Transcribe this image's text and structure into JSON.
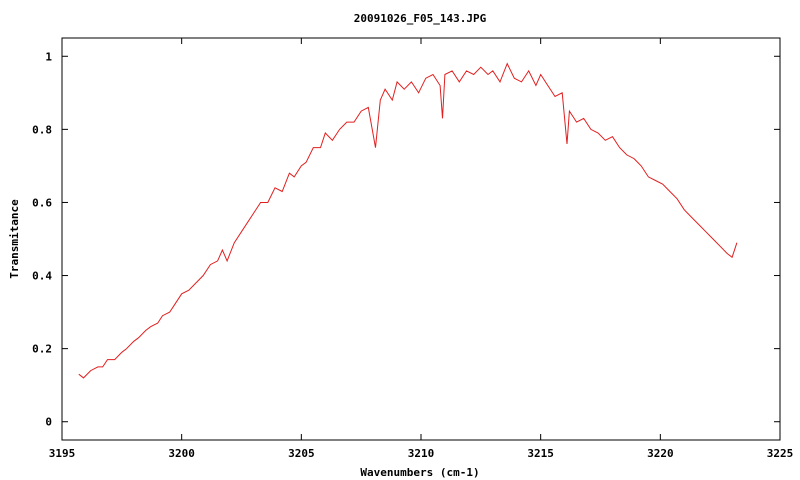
{
  "chart_data": {
    "type": "line",
    "title": "20091026_F05_143.JPG",
    "xlabel": "Wavenumbers (cm-1)",
    "ylabel": "Transmitance",
    "xlim": [
      3195,
      3225
    ],
    "ylim": [
      -0.05,
      1.05
    ],
    "xticks": [
      3195,
      3200,
      3205,
      3210,
      3215,
      3220,
      3225
    ],
    "yticks": [
      0,
      0.2,
      0.4,
      0.6,
      0.8,
      1
    ],
    "ytick_labels": [
      "0",
      "0.2",
      "0.4",
      "0.6",
      "0.8",
      "1"
    ],
    "grid": false,
    "line_color": "#e02020",
    "series": [
      {
        "x": [
          3195.7,
          3195.9,
          3196.2,
          3196.5,
          3196.7,
          3196.9,
          3197.2,
          3197.5,
          3197.7,
          3198.0,
          3198.2,
          3198.5,
          3198.7,
          3199.0,
          3199.2,
          3199.5,
          3199.7,
          3200.0,
          3200.3,
          3200.6,
          3200.9,
          3201.2,
          3201.5,
          3201.7,
          3201.9,
          3202.2,
          3202.5,
          3202.8,
          3203.0,
          3203.3,
          3203.6,
          3203.9,
          3204.2,
          3204.5,
          3204.7,
          3205.0,
          3205.2,
          3205.5,
          3205.8,
          3206.0,
          3206.3,
          3206.6,
          3206.9,
          3207.2,
          3207.5,
          3207.8,
          3208.1,
          3208.3,
          3208.5,
          3208.8,
          3209.0,
          3209.3,
          3209.6,
          3209.9,
          3210.2,
          3210.5,
          3210.8,
          3210.9,
          3211.0,
          3211.3,
          3211.6,
          3211.9,
          3212.2,
          3212.5,
          3212.8,
          3213.0,
          3213.3,
          3213.6,
          3213.9,
          3214.2,
          3214.5,
          3214.8,
          3215.0,
          3215.3,
          3215.6,
          3215.9,
          3216.1,
          3216.2,
          3216.5,
          3216.8,
          3217.1,
          3217.4,
          3217.7,
          3218.0,
          3218.3,
          3218.6,
          3218.9,
          3219.2,
          3219.5,
          3219.8,
          3220.1,
          3220.4,
          3220.7,
          3221.0,
          3221.3,
          3221.6,
          3221.9,
          3222.2,
          3222.5,
          3222.8,
          3223.0,
          3223.2
        ],
        "y": [
          0.13,
          0.12,
          0.14,
          0.15,
          0.15,
          0.17,
          0.17,
          0.19,
          0.2,
          0.22,
          0.23,
          0.25,
          0.26,
          0.27,
          0.29,
          0.3,
          0.32,
          0.35,
          0.36,
          0.38,
          0.4,
          0.43,
          0.44,
          0.47,
          0.44,
          0.49,
          0.52,
          0.55,
          0.57,
          0.6,
          0.6,
          0.64,
          0.63,
          0.68,
          0.67,
          0.7,
          0.71,
          0.75,
          0.75,
          0.79,
          0.77,
          0.8,
          0.82,
          0.82,
          0.85,
          0.86,
          0.75,
          0.88,
          0.91,
          0.88,
          0.93,
          0.91,
          0.93,
          0.9,
          0.94,
          0.95,
          0.92,
          0.83,
          0.95,
          0.96,
          0.93,
          0.96,
          0.95,
          0.97,
          0.95,
          0.96,
          0.93,
          0.98,
          0.94,
          0.93,
          0.96,
          0.92,
          0.95,
          0.92,
          0.89,
          0.9,
          0.76,
          0.85,
          0.82,
          0.83,
          0.8,
          0.79,
          0.77,
          0.78,
          0.75,
          0.73,
          0.72,
          0.7,
          0.67,
          0.66,
          0.65,
          0.63,
          0.61,
          0.58,
          0.56,
          0.54,
          0.52,
          0.5,
          0.48,
          0.46,
          0.45,
          0.49
        ]
      }
    ]
  }
}
